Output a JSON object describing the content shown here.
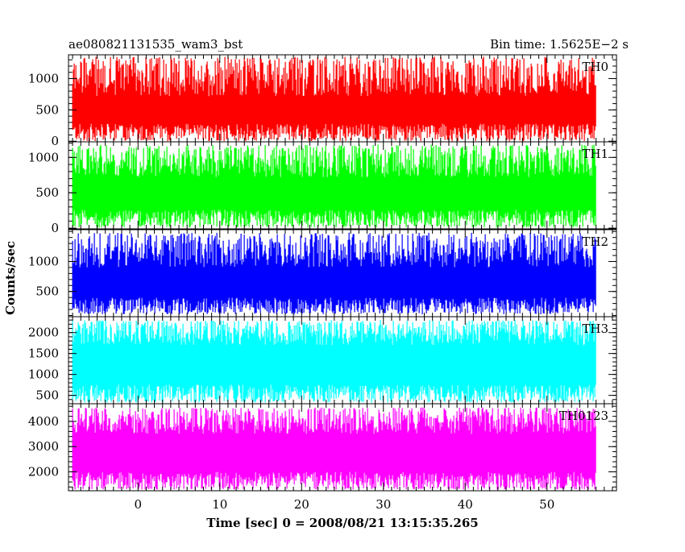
{
  "chart_data": {
    "type": "line",
    "title_left": "ae080821131535_wam3_bst",
    "title_right": "Bin time: 1.5625E−2 s",
    "xlabel": "Time [sec] 0 = 2008/08/21 13:15:35.265",
    "ylabel": "Counts/sec",
    "xlim": [
      -8.5,
      58.5
    ],
    "x_ticks": [
      0,
      10,
      20,
      30,
      40,
      50
    ],
    "x_range_data": [
      -8,
      56
    ],
    "panels": [
      {
        "name": "TH0",
        "color": "#ff0000",
        "ylim": [
          -10,
          1380
        ],
        "y_ticks": [
          0,
          500,
          1000
        ],
        "y_tick_labels": [
          "0",
          "500",
          "1000"
        ],
        "low_range": [
          0,
          280
        ],
        "high_range": [
          720,
          1350
        ]
      },
      {
        "name": "TH1",
        "color": "#00ff00",
        "ylim": [
          -10,
          1220
        ],
        "y_ticks": [
          0,
          500,
          1000
        ],
        "y_tick_labels": [
          "0",
          "500",
          "1000"
        ],
        "low_range": [
          10,
          260
        ],
        "high_range": [
          720,
          1180
        ]
      },
      {
        "name": "TH2",
        "color": "#0000ff",
        "ylim": [
          80,
          1530
        ],
        "y_ticks": [
          500,
          1000
        ],
        "y_tick_labels": [
          "500",
          "1000"
        ],
        "low_range": [
          120,
          400
        ],
        "high_range": [
          900,
          1480
        ]
      },
      {
        "name": "TH3",
        "color": "#00ffff",
        "ylim": [
          300,
          2380
        ],
        "y_ticks": [
          500,
          1000,
          1500,
          2000
        ],
        "y_tick_labels": [
          "500",
          "1000",
          "1500",
          "2000"
        ],
        "low_range": [
          330,
          760
        ],
        "high_range": [
          1700,
          2300
        ]
      },
      {
        "name": "TH0123",
        "color": "#ff00ff",
        "ylim": [
          1250,
          4700
        ],
        "y_ticks": [
          2000,
          3000,
          4000
        ],
        "y_tick_labels": [
          "2000",
          "3000",
          "4000"
        ],
        "low_range": [
          1300,
          2000
        ],
        "high_range": [
          3500,
          4550
        ]
      }
    ]
  }
}
